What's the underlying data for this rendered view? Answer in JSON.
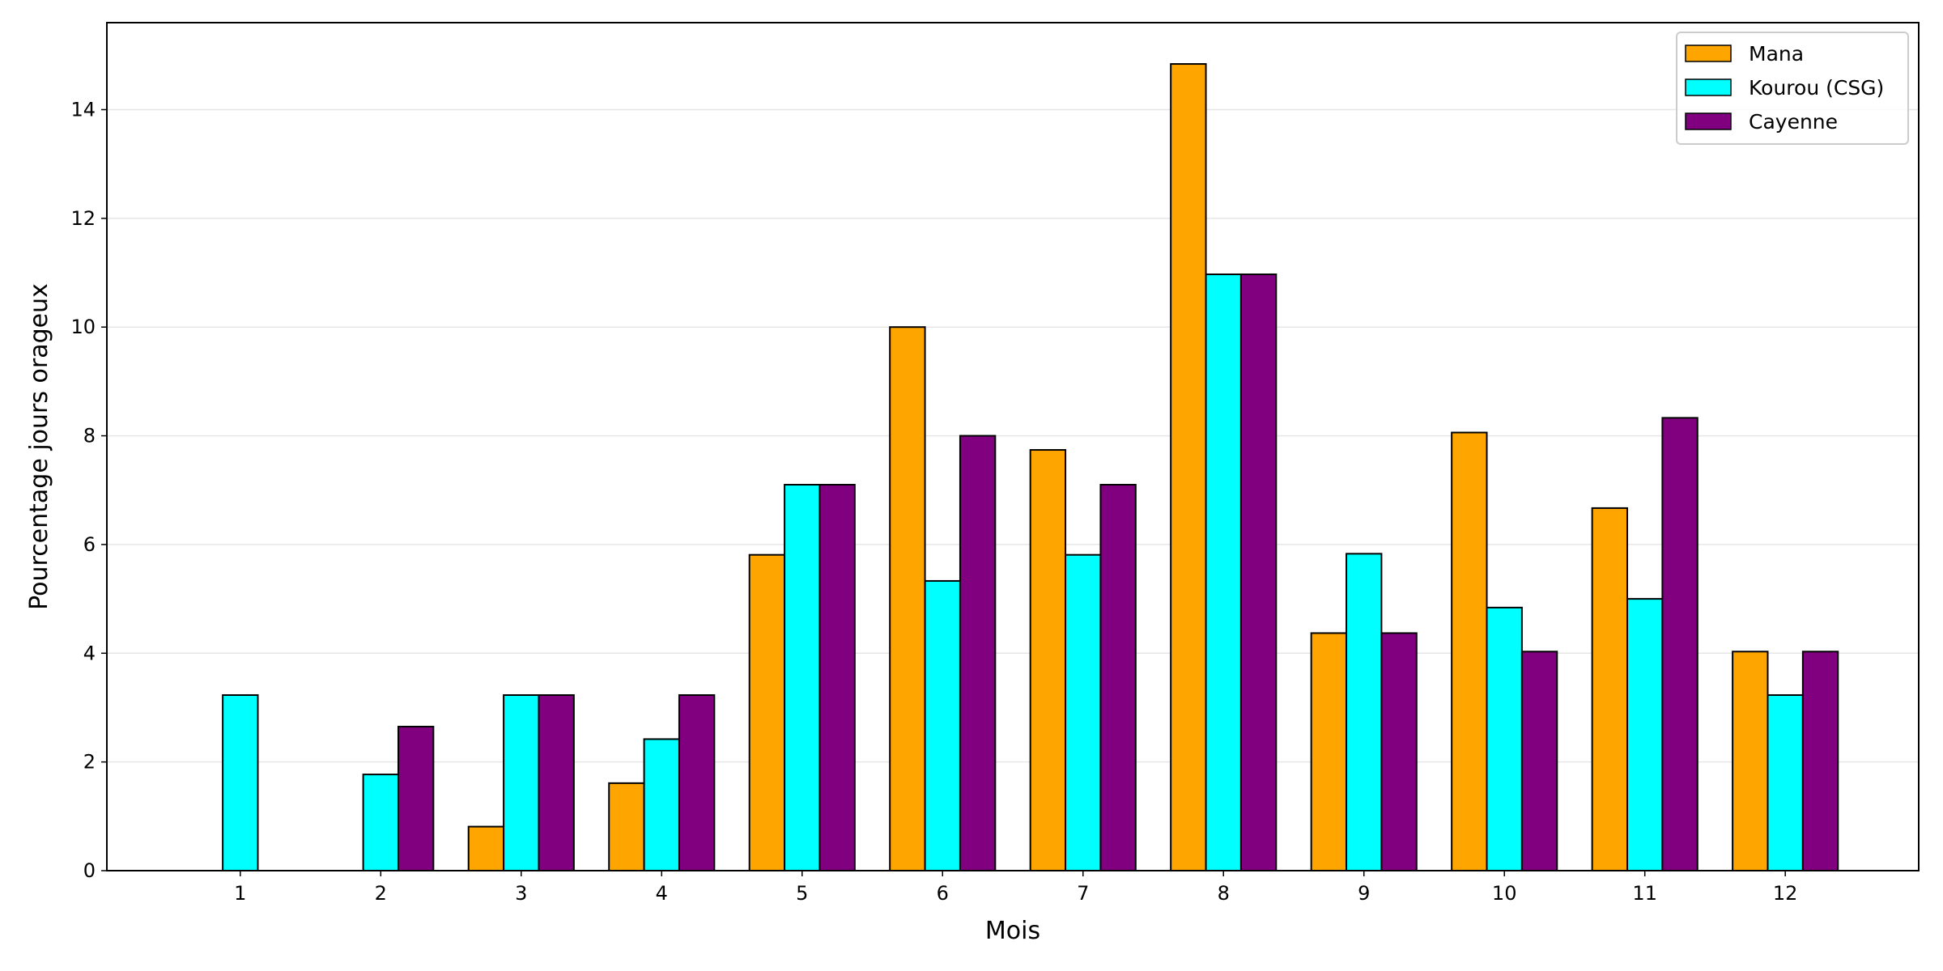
{
  "chart_data": {
    "type": "bar",
    "title": "",
    "xlabel": "Mois",
    "ylabel": "Pourcentage jours orageux",
    "categories": [
      "1",
      "2",
      "3",
      "4",
      "5",
      "6",
      "7",
      "8",
      "9",
      "10",
      "11",
      "12"
    ],
    "series": [
      {
        "name": "Mana",
        "color": "#ffa500",
        "values": [
          0,
          0,
          0.81,
          1.61,
          5.81,
          10.0,
          7.74,
          14.84,
          4.37,
          8.06,
          6.67,
          4.03
        ]
      },
      {
        "name": "Kourou (CSG)",
        "color": "#00ffff",
        "values": [
          3.23,
          1.77,
          3.23,
          2.42,
          7.1,
          5.33,
          5.81,
          10.97,
          5.83,
          4.84,
          5.0,
          3.23
        ]
      },
      {
        "name": "Cayenne",
        "color": "#800080",
        "values": [
          0,
          2.65,
          3.23,
          3.23,
          7.1,
          8.0,
          7.1,
          10.97,
          4.37,
          4.03,
          8.33,
          4.03
        ]
      }
    ],
    "ylim": [
      0,
      15.6
    ],
    "yticks": [
      0,
      2,
      4,
      6,
      8,
      10,
      12,
      14
    ],
    "grid": "horizontal",
    "legend_position": "top-right"
  }
}
